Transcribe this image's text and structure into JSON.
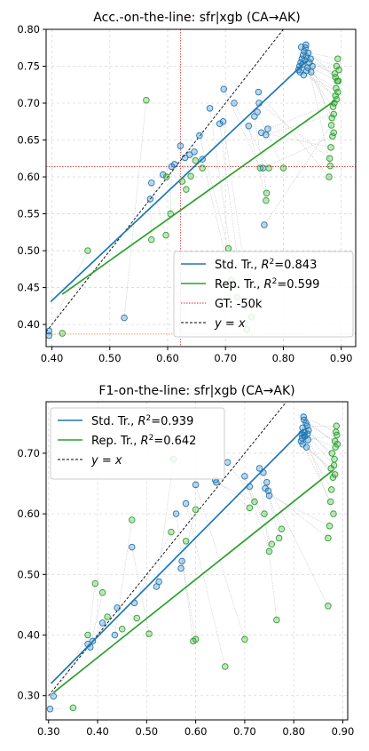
{
  "chart_data": [
    {
      "type": "scatter",
      "title": "Acc.-on-the-line: sfr|xgb  (CA→AK)",
      "xlabel": "",
      "ylabel": "",
      "xlim": [
        0.39,
        0.925
      ],
      "ylim": [
        0.37,
        0.8
      ],
      "xticks": [
        0.4,
        0.5,
        0.6,
        0.7,
        0.8,
        0.9
      ],
      "yticks": [
        0.4,
        0.45,
        0.5,
        0.55,
        0.6,
        0.65,
        0.7,
        0.75,
        0.8
      ],
      "xtick_labels": [
        "0.40",
        "0.50",
        "0.60",
        "0.70",
        "0.80",
        "0.90"
      ],
      "ytick_labels": [
        "0.40",
        "0.45",
        "0.50",
        "0.55",
        "0.60",
        "0.65",
        "0.70",
        "0.75",
        "0.80"
      ],
      "grid": true,
      "legend_position": "lower-right",
      "colors": {
        "std": "#1f77b4",
        "rep": "#2ca02c",
        "gt_v": "#d62728",
        "gt_h": "#ff7f0e",
        "pair_line": "#bbbbbb"
      },
      "series": [
        {
          "key": "std",
          "name": "Std. Tr., ",
          "r2_label": "=0.843",
          "fit": [
            [
              0.398,
              0.431
            ],
            [
              0.84,
              0.757
            ]
          ],
          "points": [
            [
              0.395,
              0.385
            ],
            [
              0.395,
              0.391
            ],
            [
              0.525,
              0.409
            ],
            [
              0.57,
              0.57
            ],
            [
              0.572,
              0.592
            ],
            [
              0.592,
              0.603
            ],
            [
              0.607,
              0.614
            ],
            [
              0.612,
              0.617
            ],
            [
              0.622,
              0.642
            ],
            [
              0.63,
              0.626
            ],
            [
              0.638,
              0.63
            ],
            [
              0.646,
              0.634
            ],
            [
              0.655,
              0.656
            ],
            [
              0.66,
              0.624
            ],
            [
              0.673,
              0.693
            ],
            [
              0.69,
              0.672
            ],
            [
              0.696,
              0.675
            ],
            [
              0.697,
              0.719
            ],
            [
              0.715,
              0.7
            ],
            [
              0.74,
              0.669
            ],
            [
              0.75,
              0.682
            ],
            [
              0.755,
              0.688
            ],
            [
              0.757,
              0.715
            ],
            [
              0.758,
              0.7
            ],
            [
              0.762,
              0.66
            ],
            [
              0.765,
              0.612
            ],
            [
              0.767,
              0.535
            ],
            [
              0.77,
              0.657
            ],
            [
              0.773,
              0.665
            ],
            [
              0.826,
              0.745
            ],
            [
              0.828,
              0.75
            ],
            [
              0.83,
              0.755
            ],
            [
              0.832,
              0.76
            ],
            [
              0.834,
              0.765
            ],
            [
              0.836,
              0.77
            ],
            [
              0.838,
              0.775
            ],
            [
              0.833,
              0.752
            ],
            [
              0.837,
              0.758
            ],
            [
              0.84,
              0.763
            ],
            [
              0.842,
              0.748
            ],
            [
              0.845,
              0.755
            ],
            [
              0.847,
              0.76
            ],
            [
              0.85,
              0.75
            ],
            [
              0.829,
              0.742
            ],
            [
              0.835,
              0.738
            ],
            [
              0.84,
              0.744
            ],
            [
              0.843,
              0.768
            ],
            [
              0.848,
              0.742
            ],
            [
              0.831,
              0.776
            ],
            [
              0.839,
              0.779
            ]
          ]
        },
        {
          "key": "rep",
          "name": "Rep. Tr., ",
          "r2_label": "=0.599",
          "fit": [
            [
              0.418,
              0.441
            ],
            [
              0.89,
              0.704
            ]
          ],
          "points": [
            [
              0.418,
              0.388
            ],
            [
              0.462,
              0.5
            ],
            [
              0.563,
              0.704
            ],
            [
              0.572,
              0.515
            ],
            [
              0.597,
              0.521
            ],
            [
              0.598,
              0.6
            ],
            [
              0.605,
              0.55
            ],
            [
              0.625,
              0.594
            ],
            [
              0.632,
              0.583
            ],
            [
              0.64,
              0.601
            ],
            [
              0.648,
              0.622
            ],
            [
              0.66,
              0.612
            ],
            [
              0.705,
              0.503
            ],
            [
              0.71,
              0.46
            ],
            [
              0.72,
              0.437
            ],
            [
              0.737,
              0.393
            ],
            [
              0.745,
              0.41
            ],
            [
              0.76,
              0.612
            ],
            [
              0.775,
              0.612
            ],
            [
              0.77,
              0.568
            ],
            [
              0.771,
              0.578
            ],
            [
              0.8,
              0.612
            ],
            [
              0.879,
              0.6
            ],
            [
              0.88,
              0.625
            ],
            [
              0.882,
              0.64
            ],
            [
              0.885,
              0.655
            ],
            [
              0.883,
              0.67
            ],
            [
              0.887,
              0.685
            ],
            [
              0.888,
              0.7
            ],
            [
              0.89,
              0.71
            ],
            [
              0.891,
              0.72
            ],
            [
              0.893,
              0.73
            ],
            [
              0.889,
              0.74
            ],
            [
              0.892,
              0.75
            ],
            [
              0.894,
              0.76
            ],
            [
              0.895,
              0.73
            ],
            [
              0.886,
              0.695
            ],
            [
              0.884,
              0.68
            ],
            [
              0.881,
              0.615
            ],
            [
              0.892,
              0.705
            ],
            [
              0.896,
              0.745
            ],
            [
              0.89,
              0.735
            ],
            [
              0.887,
              0.66
            ],
            [
              0.894,
              0.715
            ]
          ]
        }
      ],
      "reference_lines": [
        {
          "key": "gt",
          "name": "GT: -50k",
          "x": 0.622,
          "y": 0.614,
          "y_orange": 0.387
        },
        {
          "key": "diag",
          "name": "y = x",
          "from": [
            0.39,
            0.39
          ],
          "to": [
            0.8,
            0.8
          ]
        }
      ]
    },
    {
      "type": "scatter",
      "title": "F1-on-the-line: sfr|xgb  (CA→AK)",
      "xlabel": "",
      "ylabel": "",
      "xlim": [
        0.295,
        0.91
      ],
      "ylim": [
        0.26,
        0.785
      ],
      "xticks": [
        0.3,
        0.4,
        0.5,
        0.6,
        0.7,
        0.8,
        0.9
      ],
      "yticks": [
        0.3,
        0.4,
        0.5,
        0.6,
        0.7
      ],
      "xtick_labels": [
        "0.30",
        "0.40",
        "0.50",
        "0.60",
        "0.70",
        "0.80",
        "0.90"
      ],
      "ytick_labels": [
        "0.30",
        "0.40",
        "0.50",
        "0.60",
        "0.70"
      ],
      "grid": true,
      "legend_position": "upper-left",
      "colors": {
        "std": "#1f77b4",
        "rep": "#2ca02c",
        "pair_line": "#bbbbbb"
      },
      "series": [
        {
          "key": "std",
          "name": "Std. Tr., ",
          "r2_label": "=0.939",
          "fit": [
            [
              0.305,
              0.32
            ],
            [
              0.82,
              0.74
            ]
          ],
          "points": [
            [
              0.303,
              0.278
            ],
            [
              0.31,
              0.299
            ],
            [
              0.38,
              0.385
            ],
            [
              0.385,
              0.38
            ],
            [
              0.39,
              0.39
            ],
            [
              0.41,
              0.42
            ],
            [
              0.435,
              0.4
            ],
            [
              0.44,
              0.445
            ],
            [
              0.47,
              0.545
            ],
            [
              0.475,
              0.453
            ],
            [
              0.52,
              0.48
            ],
            [
              0.525,
              0.488
            ],
            [
              0.56,
              0.6
            ],
            [
              0.572,
              0.522
            ],
            [
              0.57,
              0.51
            ],
            [
              0.58,
              0.617
            ],
            [
              0.6,
              0.648
            ],
            [
              0.64,
              0.656
            ],
            [
              0.642,
              0.652
            ],
            [
              0.665,
              0.685
            ],
            [
              0.7,
              0.662
            ],
            [
              0.71,
              0.645
            ],
            [
              0.73,
              0.675
            ],
            [
              0.738,
              0.668
            ],
            [
              0.742,
              0.642
            ],
            [
              0.745,
              0.652
            ],
            [
              0.748,
              0.638
            ],
            [
              0.75,
              0.63
            ],
            [
              0.815,
              0.72
            ],
            [
              0.817,
              0.725
            ],
            [
              0.82,
              0.73
            ],
            [
              0.822,
              0.735
            ],
            [
              0.818,
              0.742
            ],
            [
              0.825,
              0.75
            ],
            [
              0.82,
              0.76
            ],
            [
              0.827,
              0.745
            ],
            [
              0.83,
              0.738
            ],
            [
              0.816,
              0.732
            ],
            [
              0.823,
              0.728
            ],
            [
              0.829,
              0.722
            ],
            [
              0.818,
              0.715
            ],
            [
              0.826,
              0.71
            ],
            [
              0.821,
              0.755
            ],
            [
              0.828,
              0.732
            ]
          ]
        },
        {
          "key": "rep",
          "name": "Rep. Tr., ",
          "r2_label": "=0.642",
          "fit": [
            [
              0.31,
              0.305
            ],
            [
              0.88,
              0.672
            ]
          ],
          "points": [
            [
              0.35,
              0.28
            ],
            [
              0.38,
              0.4
            ],
            [
              0.395,
              0.485
            ],
            [
              0.41,
              0.47
            ],
            [
              0.42,
              0.43
            ],
            [
              0.45,
              0.41
            ],
            [
              0.47,
              0.59
            ],
            [
              0.48,
              0.428
            ],
            [
              0.505,
              0.402
            ],
            [
              0.55,
              0.57
            ],
            [
              0.555,
              0.69
            ],
            [
              0.58,
              0.555
            ],
            [
              0.595,
              0.39
            ],
            [
              0.6,
              0.393
            ],
            [
              0.6,
              0.607
            ],
            [
              0.66,
              0.348
            ],
            [
              0.7,
              0.393
            ],
            [
              0.71,
              0.61
            ],
            [
              0.72,
              0.62
            ],
            [
              0.74,
              0.6
            ],
            [
              0.75,
              0.538
            ],
            [
              0.755,
              0.55
            ],
            [
              0.765,
              0.425
            ],
            [
              0.77,
              0.56
            ],
            [
              0.775,
              0.575
            ],
            [
              0.87,
              0.448
            ],
            [
              0.87,
              0.56
            ],
            [
              0.873,
              0.58
            ],
            [
              0.875,
              0.62
            ],
            [
              0.877,
              0.64
            ],
            [
              0.88,
              0.66
            ],
            [
              0.882,
              0.68
            ],
            [
              0.878,
              0.7
            ],
            [
              0.884,
              0.72
            ],
            [
              0.886,
              0.735
            ],
            [
              0.887,
              0.745
            ],
            [
              0.883,
              0.69
            ],
            [
              0.885,
              0.71
            ],
            [
              0.881,
              0.6
            ],
            [
              0.888,
              0.73
            ],
            [
              0.876,
              0.675
            ],
            [
              0.884,
              0.665
            ],
            [
              0.889,
              0.715
            ]
          ]
        }
      ],
      "reference_lines": [
        {
          "key": "diag",
          "name": "y = x",
          "from": [
            0.3,
            0.3
          ],
          "to": [
            0.785,
            0.785
          ]
        }
      ]
    }
  ]
}
